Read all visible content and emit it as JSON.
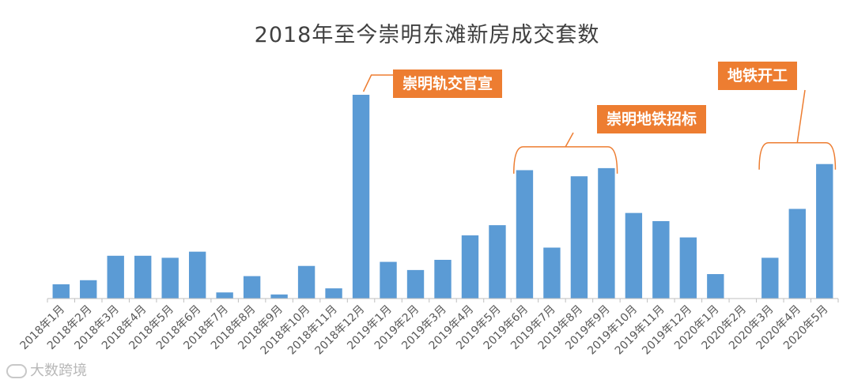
{
  "chart_data": {
    "type": "bar",
    "title": "2018年至今崇明东滩新房成交套数",
    "categories": [
      "2018年1月",
      "2018年2月",
      "2018年3月",
      "2018年4月",
      "2018年5月",
      "2018年6月",
      "2018年7月",
      "2018年8月",
      "2018年9月",
      "2018年10月",
      "2018年11月",
      "2018年12月",
      "2019年1月",
      "2019年2月",
      "2019年3月",
      "2019年4月",
      "2019年5月",
      "2019年6月",
      "2019年7月",
      "2019年8月",
      "2019年9月",
      "2019年10月",
      "2019年11月",
      "2019年12月",
      "2020年1月",
      "2020年2月",
      "2020年3月",
      "2020年4月",
      "2020年5月"
    ],
    "values": [
      7,
      9,
      21,
      21,
      20,
      23,
      3,
      11,
      2,
      16,
      5,
      100,
      18,
      14,
      19,
      31,
      36,
      63,
      25,
      60,
      64,
      42,
      38,
      30,
      12,
      0,
      20,
      44,
      66
    ],
    "ylim": [
      0,
      104
    ],
    "grid": false,
    "bar_color": "#5B9BD5",
    "annotations": [
      {
        "text": "崇明轨交官宣",
        "target_category": "2018年12月"
      },
      {
        "text": "崇明地铁招标",
        "bracket_categories": [
          "2019年6月",
          "2019年9月"
        ]
      },
      {
        "text": "地铁开工",
        "bracket_categories": [
          "2020年3月",
          "2020年5月"
        ]
      }
    ],
    "annotation_color": "#ED7D31"
  },
  "watermark": {
    "text": "大数跨境"
  }
}
